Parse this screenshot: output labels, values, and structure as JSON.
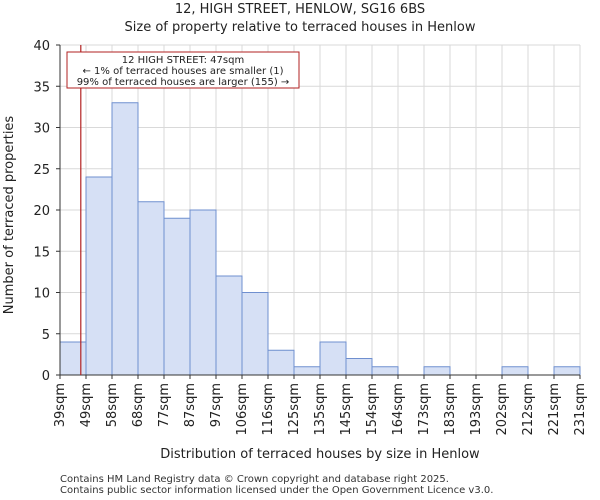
{
  "chart_data": {
    "type": "bar",
    "title": "12, HIGH STREET, HENLOW, SG16 6BS",
    "subtitle": "Size of property relative to terraced houses in Henlow",
    "xlabel": "Distribution of terraced houses by size in Henlow",
    "ylabel": "Number of terraced properties",
    "ylim": [
      0,
      40
    ],
    "yticks": [
      0,
      5,
      10,
      15,
      20,
      25,
      30,
      35,
      40
    ],
    "bin_edges": [
      39,
      49,
      58,
      68,
      77,
      87,
      97,
      106,
      116,
      125,
      135,
      145,
      154,
      164,
      173,
      183,
      193,
      202,
      212,
      221,
      231
    ],
    "tick_labels": [
      "39sqm",
      "49sqm",
      "58sqm",
      "68sqm",
      "77sqm",
      "87sqm",
      "97sqm",
      "106sqm",
      "116sqm",
      "125sqm",
      "135sqm",
      "145sqm",
      "154sqm",
      "164sqm",
      "173sqm",
      "183sqm",
      "193sqm",
      "202sqm",
      "212sqm",
      "221sqm",
      "231sqm"
    ],
    "values": [
      4,
      24,
      33,
      21,
      19,
      20,
      12,
      10,
      3,
      1,
      4,
      2,
      1,
      0,
      1,
      0,
      0,
      1,
      0,
      1
    ],
    "bar_color": "#d6e0f5",
    "bar_edge_color": "#6f8fcf",
    "marker": {
      "value_sqm": 47,
      "color": "#b22222",
      "annotation": [
        "12 HIGH STREET: 47sqm",
        "← 1% of terraced houses are smaller (1)",
        "99% of terraced houses are larger (155) →"
      ]
    }
  },
  "footer": {
    "line1": "Contains HM Land Registry data © Crown copyright and database right 2025.",
    "line2": "Contains public sector information licensed under the Open Government Licence v3.0."
  }
}
